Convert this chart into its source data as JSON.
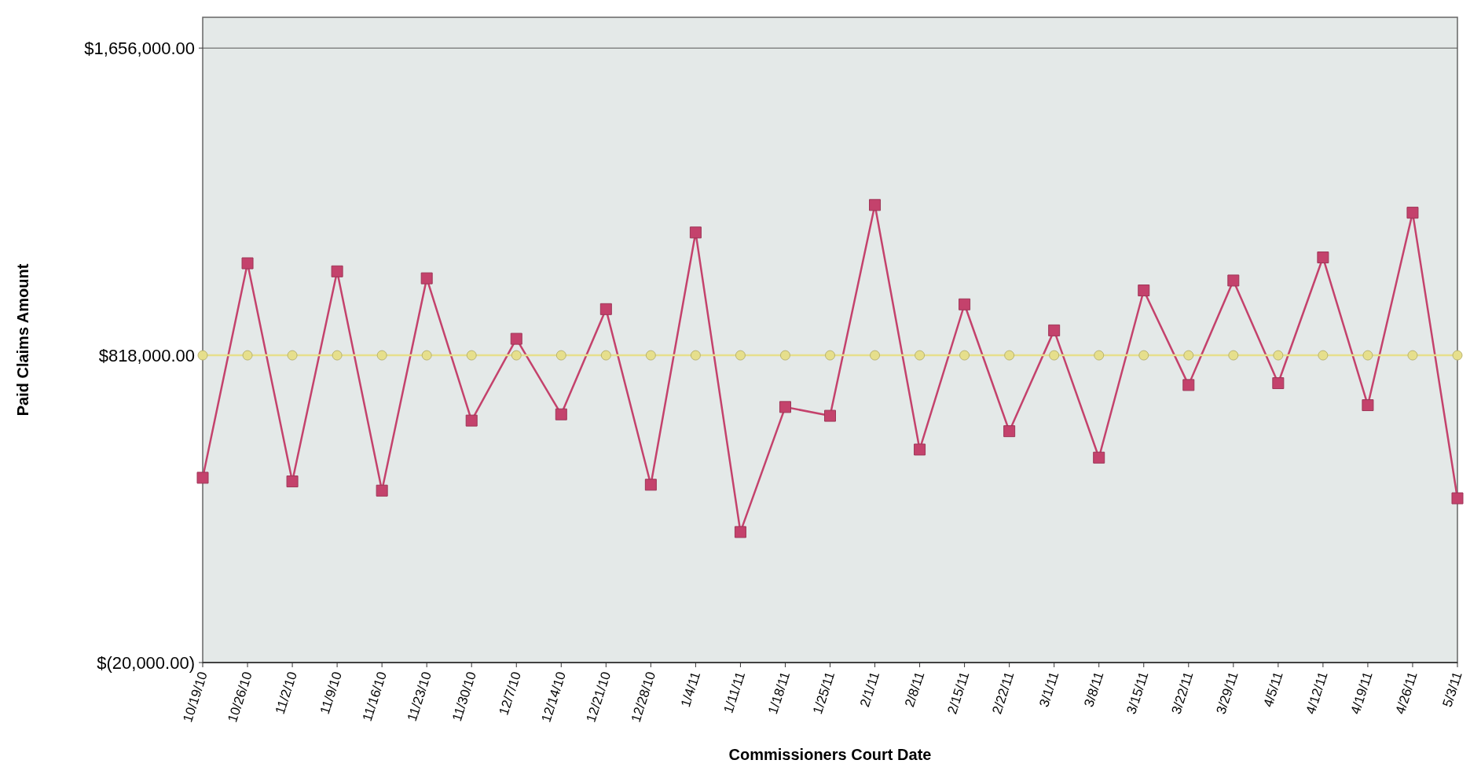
{
  "chart_data": {
    "type": "line",
    "xlabel": "Commissioners Court Date",
    "ylabel": "Paid Claims Amount",
    "categories": [
      "10/19/10",
      "10/26/10",
      "11/2/10",
      "11/9/10",
      "11/16/10",
      "11/23/10",
      "11/30/10",
      "12/7/10",
      "12/14/10",
      "12/21/10",
      "12/28/10",
      "1/4/11",
      "1/11/11",
      "1/18/11",
      "1/25/11",
      "2/1/11",
      "2/8/11",
      "2/15/11",
      "2/22/11",
      "3/1/11",
      "3/8/11",
      "3/15/11",
      "3/22/11",
      "3/29/11",
      "4/5/11",
      "4/12/11",
      "4/19/11",
      "4/26/11",
      "5/3/11"
    ],
    "series": [
      {
        "color": "#c4426c",
        "marker": "square",
        "values": [
          484000,
          1069000,
          474000,
          1047000,
          449000,
          1028000,
          640000,
          863000,
          657000,
          944000,
          465000,
          1153000,
          336000,
          677000,
          653000,
          1228000,
          561000,
          957000,
          611000,
          886000,
          539000,
          995000,
          737000,
          1022000,
          742000,
          1085000,
          682000,
          1207000,
          428000
        ]
      },
      {
        "color": "#e6df8c",
        "marker": "circle",
        "values": [
          818000,
          818000,
          818000,
          818000,
          818000,
          818000,
          818000,
          818000,
          818000,
          818000,
          818000,
          818000,
          818000,
          818000,
          818000,
          818000,
          818000,
          818000,
          818000,
          818000,
          818000,
          818000,
          818000,
          818000,
          818000,
          818000,
          818000,
          818000,
          818000
        ]
      }
    ],
    "ylim": [
      -20000,
      1740000
    ],
    "yticks": [
      {
        "value": -20000,
        "label": "$(20,000.00)"
      },
      {
        "value": 818000,
        "label": "$818,000.00"
      },
      {
        "value": 1656000,
        "label": "$1,656,000.00"
      }
    ],
    "grid": "y"
  }
}
